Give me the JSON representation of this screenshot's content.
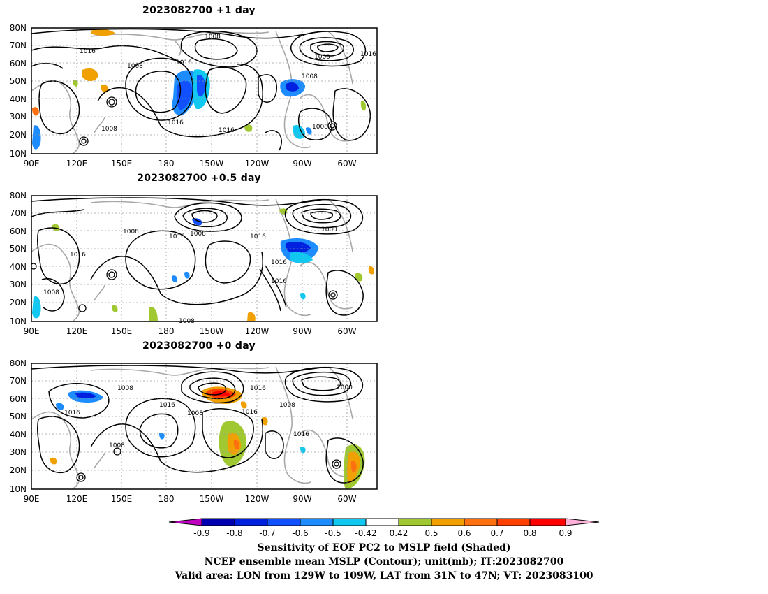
{
  "panels": [
    {
      "title": "2023082700  +1 day",
      "isobar_labels": [
        "1008",
        "1016",
        "1008",
        "1016",
        "1000",
        "1016",
        "1008",
        "1016",
        "1016",
        "1008"
      ]
    },
    {
      "title": "2023082700  +0.5 day",
      "isobar_labels": [
        "1008",
        "1016",
        "1008",
        "1016",
        "1000",
        "1016",
        "1016",
        "1008",
        "1008"
      ]
    },
    {
      "title": "2023082700  +0 day",
      "isobar_labels": [
        "1008",
        "1016",
        "1016",
        "1008",
        "1016",
        "1016",
        "1008",
        "1000",
        "1016",
        "1008"
      ]
    }
  ],
  "map_axes": {
    "lat_labels": [
      "80N",
      "70N",
      "60N",
      "50N",
      "40N",
      "30N",
      "20N",
      "10N"
    ],
    "lon_labels": [
      "90E",
      "120E",
      "150E",
      "180",
      "150W",
      "120W",
      "90W",
      "60W"
    ]
  },
  "colorbar": {
    "ticks": [
      "-0.9",
      "-0.8",
      "-0.7",
      "-0.6",
      "-0.5",
      "-0.42",
      "0.42",
      "0.5",
      "0.6",
      "0.7",
      "0.8",
      "0.9"
    ],
    "colors": [
      "#c000c0",
      "#0000b0",
      "#0020e0",
      "#1050ff",
      "#1c8cff",
      "#10c8f0",
      "#ffffff",
      "#a0c830",
      "#f0a000",
      "#ff7010",
      "#ff4000",
      "#ff0000",
      "#ffb0d8"
    ]
  },
  "footer": {
    "line1": "Sensitivity of EOF PC2 to MSLP field (Shaded)",
    "line2": "NCEP ensemble mean MSLP (Contour); unit(mb); IT:2023082700",
    "line3": "Valid area: LON from 129W to 109W, LAT from 31N to 47N; VT: 2023083100"
  }
}
